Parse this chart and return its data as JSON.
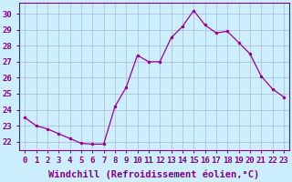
{
  "x": [
    0,
    1,
    2,
    3,
    4,
    5,
    6,
    7,
    8,
    9,
    10,
    11,
    12,
    13,
    14,
    15,
    16,
    17,
    18,
    19,
    20,
    21,
    22,
    23
  ],
  "y": [
    23.5,
    23.0,
    22.8,
    22.5,
    22.2,
    21.9,
    21.85,
    21.85,
    24.2,
    25.4,
    27.4,
    27.0,
    27.0,
    28.5,
    29.2,
    30.2,
    29.3,
    28.8,
    28.9,
    28.2,
    27.5,
    26.1,
    25.3,
    24.8
  ],
  "line_color": "#990099",
  "marker": ".",
  "marker_size": 3,
  "background_color": "#cceeff",
  "grid_color": "#aabbcc",
  "xlabel": "Windchill (Refroidissement éolien,°C)",
  "xlabel_fontsize": 7.5,
  "ylabel_ticks": [
    22,
    23,
    24,
    25,
    26,
    27,
    28,
    29,
    30
  ],
  "xtick_labels": [
    "0",
    "1",
    "2",
    "3",
    "4",
    "5",
    "6",
    "7",
    "8",
    "9",
    "10",
    "11",
    "12",
    "13",
    "14",
    "15",
    "16",
    "17",
    "18",
    "19",
    "20",
    "21",
    "22",
    "23"
  ],
  "ylim": [
    21.5,
    30.7
  ],
  "xlim": [
    -0.5,
    23.5
  ],
  "tick_fontsize": 6.5,
  "label_color": "#880088"
}
